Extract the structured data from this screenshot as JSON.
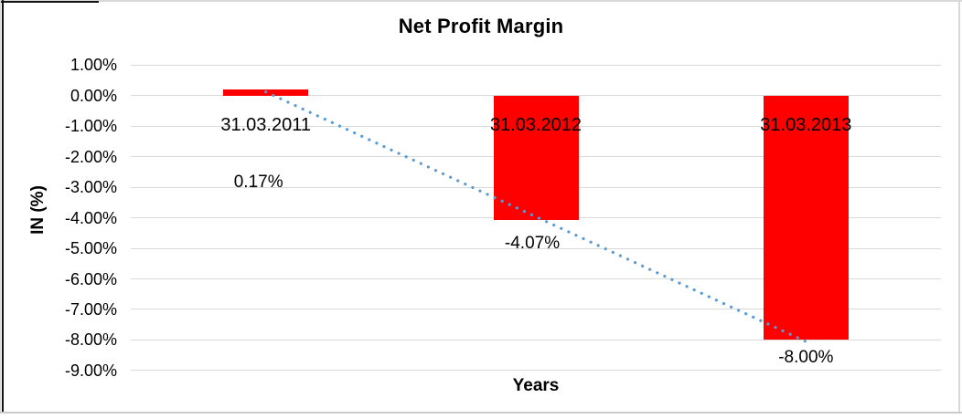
{
  "chart_data": {
    "type": "bar",
    "title": "Net Profit Margin",
    "categories": [
      "31.03.2011",
      "31.03.2012",
      "31.03.2013"
    ],
    "values": [
      0.17,
      -4.07,
      -8.0
    ],
    "data_labels": [
      "0.17%",
      "-4.07%",
      "-8.00%"
    ],
    "xlabel": "Years",
    "ylabel": "IN (%)",
    "ylim": [
      -9,
      1
    ],
    "ytick_step": 1,
    "ytick_labels": [
      "1.00%",
      "0.00%",
      "-1.00%",
      "-2.00%",
      "-3.00%",
      "-4.00%",
      "-5.00%",
      "-6.00%",
      "-7.00%",
      "-8.00%",
      "-9.00%"
    ],
    "grid": true,
    "legend": "none",
    "bar_color": "#FF0000",
    "gridline_color": "#D9D9D9",
    "trendline": {
      "type": "linear",
      "style": "dotted",
      "color": "#5B9BD5",
      "start_value": 0.12,
      "end_value": -8.05
    }
  }
}
